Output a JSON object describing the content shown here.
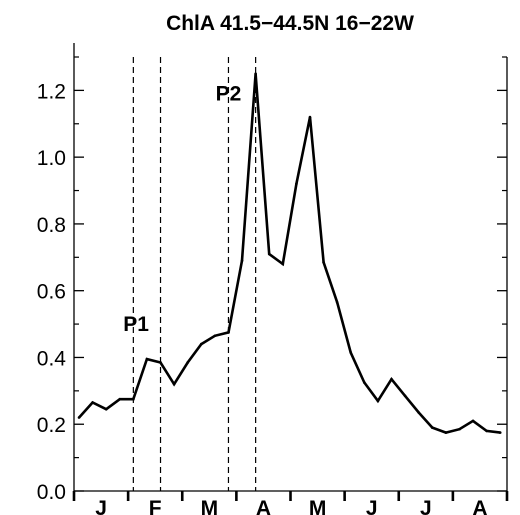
{
  "chart_data": {
    "type": "line",
    "title": "ChlA 41.5−44.5N 16−22W",
    "xlabel": "",
    "ylabel": "",
    "ylim": [
      0,
      1.3
    ],
    "yticks": [
      "0.0",
      "0.2",
      "0.4",
      "0.6",
      "0.8",
      "1.0",
      "1.2"
    ],
    "month_labels": [
      "J",
      "F",
      "M",
      "A",
      "M",
      "J",
      "J",
      "A"
    ],
    "series": [
      {
        "values": [
          0.22,
          0.265,
          0.245,
          0.275,
          0.275,
          0.395,
          0.385,
          0.32,
          0.385,
          0.44,
          0.465,
          0.475,
          0.69,
          1.25,
          0.71,
          0.68,
          0.92,
          1.12,
          0.685,
          0.565,
          0.415,
          0.325,
          0.27,
          0.335,
          0.285,
          0.235,
          0.19,
          0.175,
          0.185,
          0.21,
          0.18,
          0.175
        ]
      }
    ],
    "vertical_markers": [
      4,
      6,
      11,
      13
    ],
    "annotations": [
      {
        "text": "P1",
        "x": 4.2,
        "y": 0.48
      },
      {
        "text": "P2",
        "x": 11.0,
        "y": 1.17
      }
    ],
    "grid": false,
    "line_color": "#000000"
  }
}
